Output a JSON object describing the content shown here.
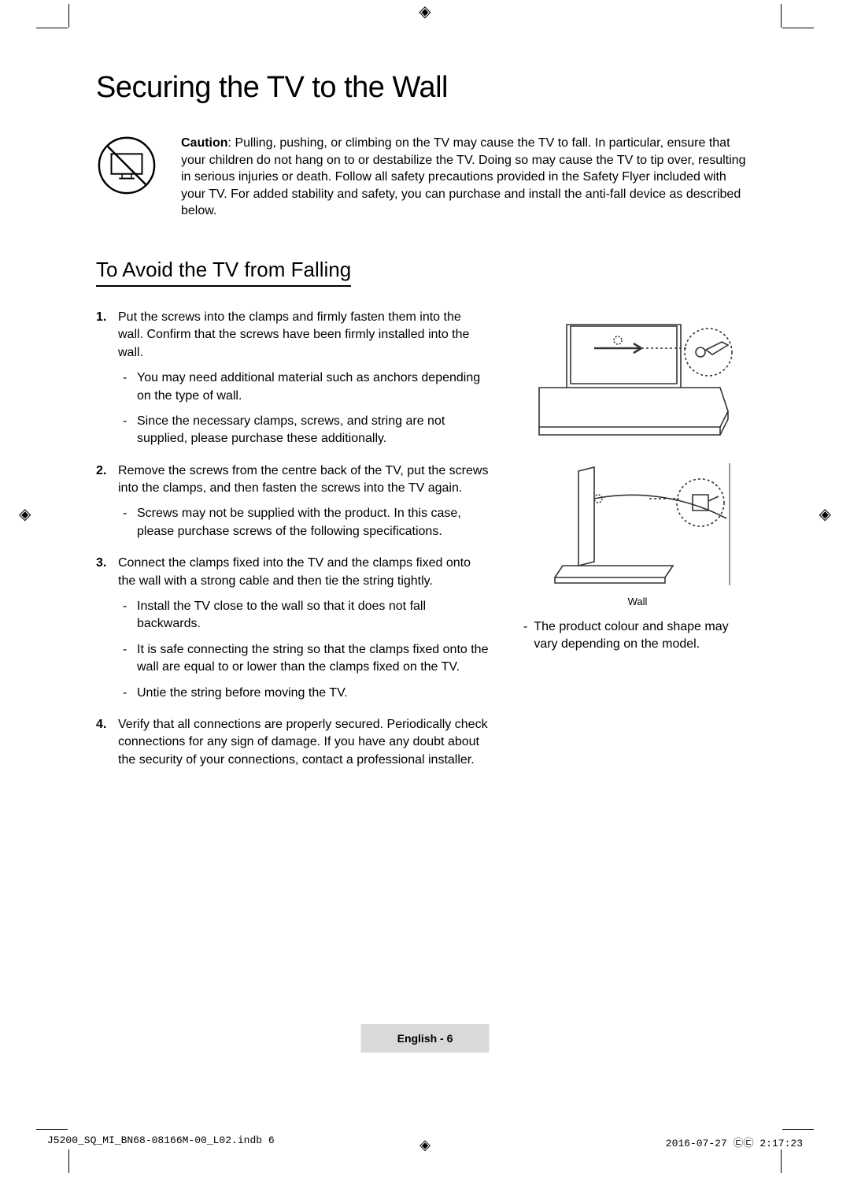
{
  "title": "Securing the TV to the Wall",
  "caution": {
    "label": "Caution",
    "text": ": Pulling, pushing, or climbing on the TV may cause the TV to fall. In particular, ensure that your children do not hang on to or destabilize the TV. Doing so may cause the TV to tip over, resulting in serious injuries or death. Follow all safety precautions provided in the Safety Flyer included with your TV. For added stability and safety, you can purchase and install the anti-fall device as described below."
  },
  "section_heading": "To Avoid the TV from Falling",
  "steps": [
    {
      "text": "Put the screws into the clamps and firmly fasten them into the wall. Confirm that the screws have been firmly installed into the wall.",
      "sub": [
        "You may need additional material such as anchors depending on the type of wall.",
        "Since the necessary clamps, screws, and string are not supplied, please purchase these additionally."
      ]
    },
    {
      "text": "Remove the screws from the centre back of the TV, put the screws into the clamps, and then fasten the screws into the TV again.",
      "sub": [
        "Screws may not be supplied with the product. In this case, please purchase screws of the following specifications."
      ]
    },
    {
      "text": "Connect the clamps fixed into the TV and the clamps fixed onto the wall with a strong cable and then tie the string tightly.",
      "sub": [
        "Install the TV close to the wall so that it does not fall backwards.",
        "It is safe connecting the string so that the clamps fixed onto the wall are equal to or lower than the clamps fixed on the TV.",
        "Untie the string before moving the TV."
      ]
    },
    {
      "text": "Verify that all connections are properly secured. Periodically check connections for any sign of damage. If you have any doubt about the security of your connections, contact a professional installer.",
      "sub": []
    }
  ],
  "diagram_wall_label": "Wall",
  "note_text": "The product colour and shape may vary depending on the model.",
  "footer": "English - 6",
  "print_left": "J5200_SQ_MI_BN68-08166M-00_L02.indb   6",
  "print_right": "2016-07-27   ㉢㉢ 2:17:23",
  "colors": {
    "text": "#000000",
    "footer_bg": "#d9d9d9",
    "diagram_stroke": "#333333"
  }
}
